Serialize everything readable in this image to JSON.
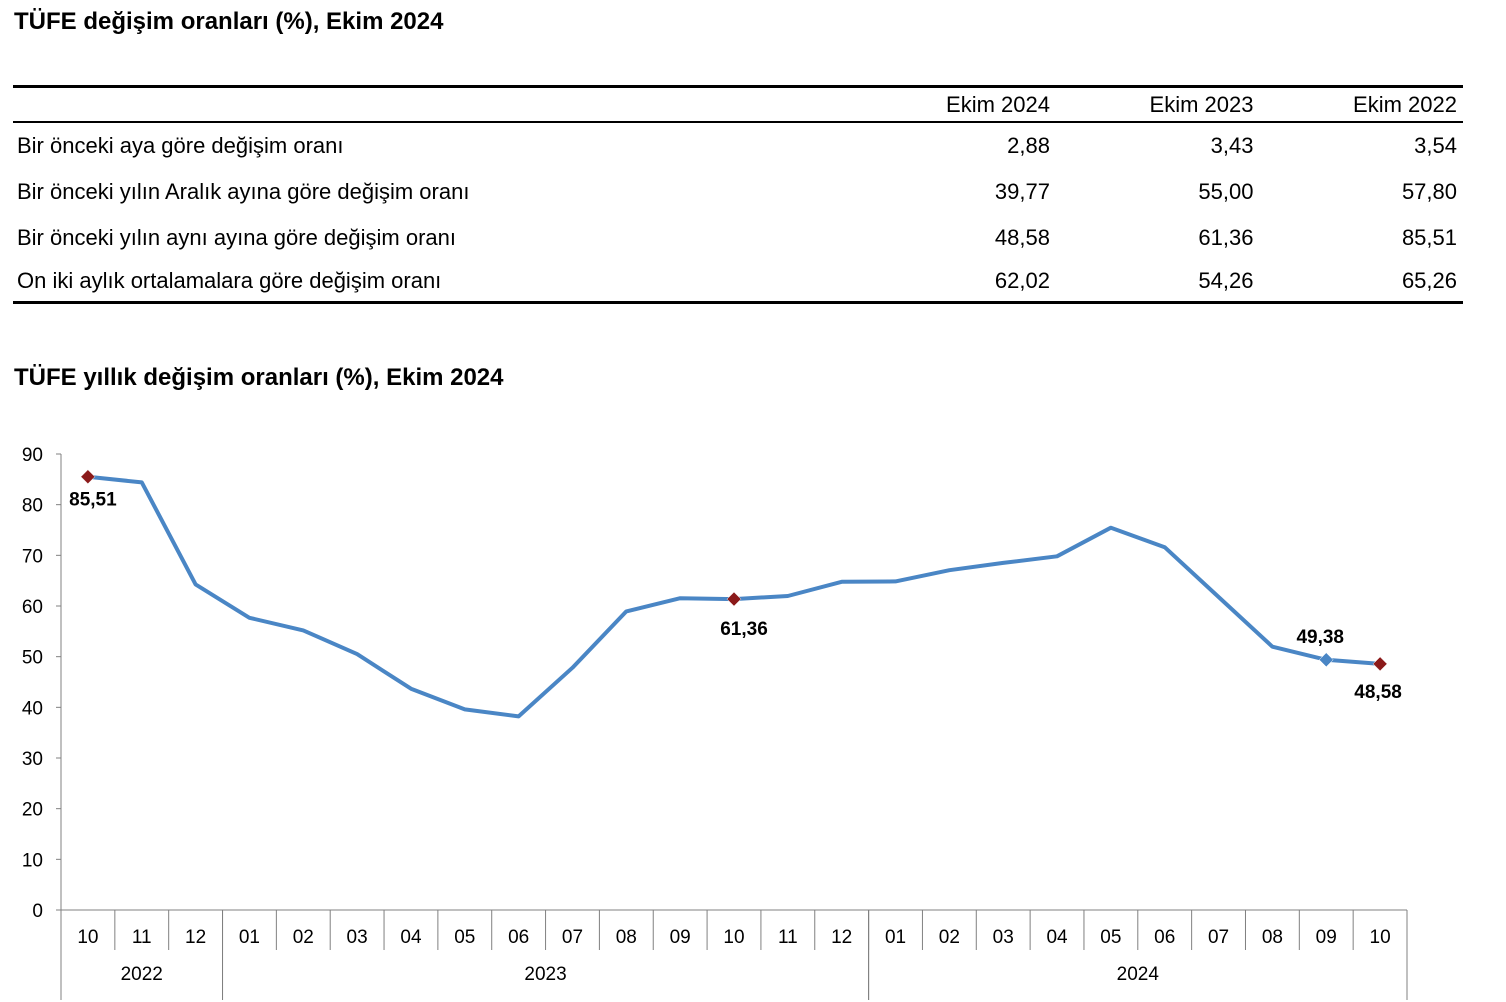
{
  "title_table": "TÜFE değişim oranları (%), Ekim 2024",
  "title_chart": "TÜFE yıllık değişim oranları (%), Ekim 2024",
  "table": {
    "columns": [
      "Ekim 2024",
      "Ekim 2023",
      "Ekim 2022"
    ],
    "rows": [
      {
        "label": "Bir önceki aya göre değişim oranı",
        "values": [
          "2,88",
          "3,43",
          "3,54"
        ]
      },
      {
        "label": "Bir önceki yılın Aralık ayına göre değişim oranı",
        "values": [
          "39,77",
          "55,00",
          "57,80"
        ]
      },
      {
        "label": "Bir önceki yılın aynı ayına göre değişim oranı",
        "values": [
          "48,58",
          "61,36",
          "85,51"
        ]
      },
      {
        "label": "On iki aylık ortalamalara göre değişim oranı",
        "values": [
          "62,02",
          "54,26",
          "65,26"
        ]
      }
    ]
  },
  "chart_data": {
    "type": "line",
    "ylim": [
      0,
      90
    ],
    "yticks": [
      0,
      10,
      20,
      30,
      40,
      50,
      60,
      70,
      80,
      90
    ],
    "x": [
      "10",
      "11",
      "12",
      "01",
      "02",
      "03",
      "04",
      "05",
      "06",
      "07",
      "08",
      "09",
      "10",
      "11",
      "12",
      "01",
      "02",
      "03",
      "04",
      "05",
      "06",
      "07",
      "08",
      "09",
      "10"
    ],
    "years": [
      {
        "label": "2022",
        "start": 0,
        "end": 2
      },
      {
        "label": "2023",
        "start": 3,
        "end": 14
      },
      {
        "label": "2024",
        "start": 15,
        "end": 24
      }
    ],
    "series": [
      {
        "color": "#4a86c5",
        "values": [
          85.51,
          84.39,
          64.27,
          57.68,
          55.18,
          50.51,
          43.68,
          39.59,
          38.21,
          47.83,
          58.94,
          61.53,
          61.36,
          61.98,
          64.77,
          64.86,
          67.07,
          68.5,
          69.8,
          75.45,
          71.6,
          61.78,
          51.97,
          49.38,
          48.58
        ]
      }
    ],
    "highlighted": [
      {
        "index": 0,
        "label": "85,51",
        "color": "#8b1a1a"
      },
      {
        "index": 12,
        "label": "61,36",
        "color": "#8b1a1a"
      },
      {
        "index": 23,
        "label": "49,38",
        "color": "#4a86c5"
      },
      {
        "index": 24,
        "label": "48,58",
        "color": "#8b1a1a"
      }
    ]
  }
}
